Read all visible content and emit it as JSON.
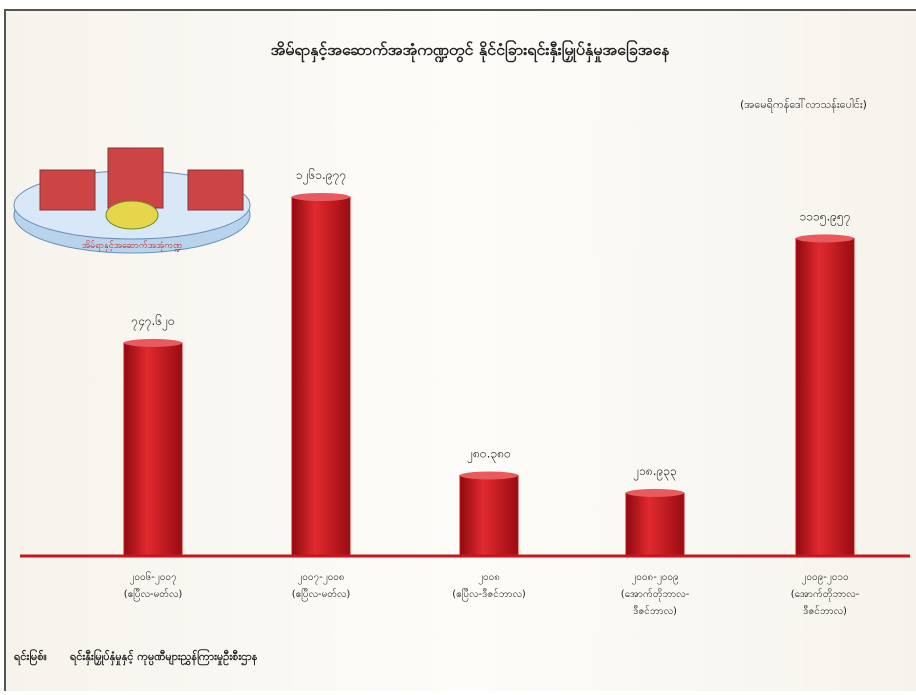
{
  "chart_data": {
    "type": "bar",
    "title": "အိမ်ရာနှင့်အဆောက်အအုံကဏ္ဍတွင် နိုင်ငံခြားရင်းနှီးမြှုပ်နှံမှုအခြေအနေ",
    "subtitle": "(အမေရိကန်ဒေါ်လာသန်းပေါင်း)",
    "icon_label": "အိမ်ရာနှင့်အဆောက်အအုံကဏ္ဍ",
    "categories": [
      [
        "၂၀၀၆-၂၀၀၇",
        "(ဧပြီလ-မတ်လ)"
      ],
      [
        "၂၀၀၇-၂၀၀၈",
        "(ဧပြီလ-မတ်လ)"
      ],
      [
        "၂၀၀၈",
        "(ဧပြီလ-ဒီဇင်ဘာလ)"
      ],
      [
        "၂၀၀၈-၂၀၀၉",
        "(အောက်တိုဘာလ-",
        "ဒီဇင်ဘာလ)"
      ],
      [
        "၂၀၀၉-၂၀၁၀",
        "(အောက်တိုဘာလ-",
        "ဒီဇင်ဘာလ)"
      ]
    ],
    "values": [
      747.62,
      1261.977,
      280.38,
      218.933,
      1115.957
    ],
    "value_labels": [
      "၇၄၇.၆၂၀",
      "၁၂၆၁.၉၇၇",
      "၂၈၀.၃၈၀",
      "၂၁၈.၉၃၃",
      "၁၁၁၅.၉၅၇"
    ],
    "color": "#c8141c",
    "source": [
      "ရင်းမြစ်။",
      "ရင်းနှီးမြှုပ်နှံမှုနှင့် ကုမ္ပဏီများညွှန်ကြားမှုဦးစီးဌာန"
    ]
  }
}
